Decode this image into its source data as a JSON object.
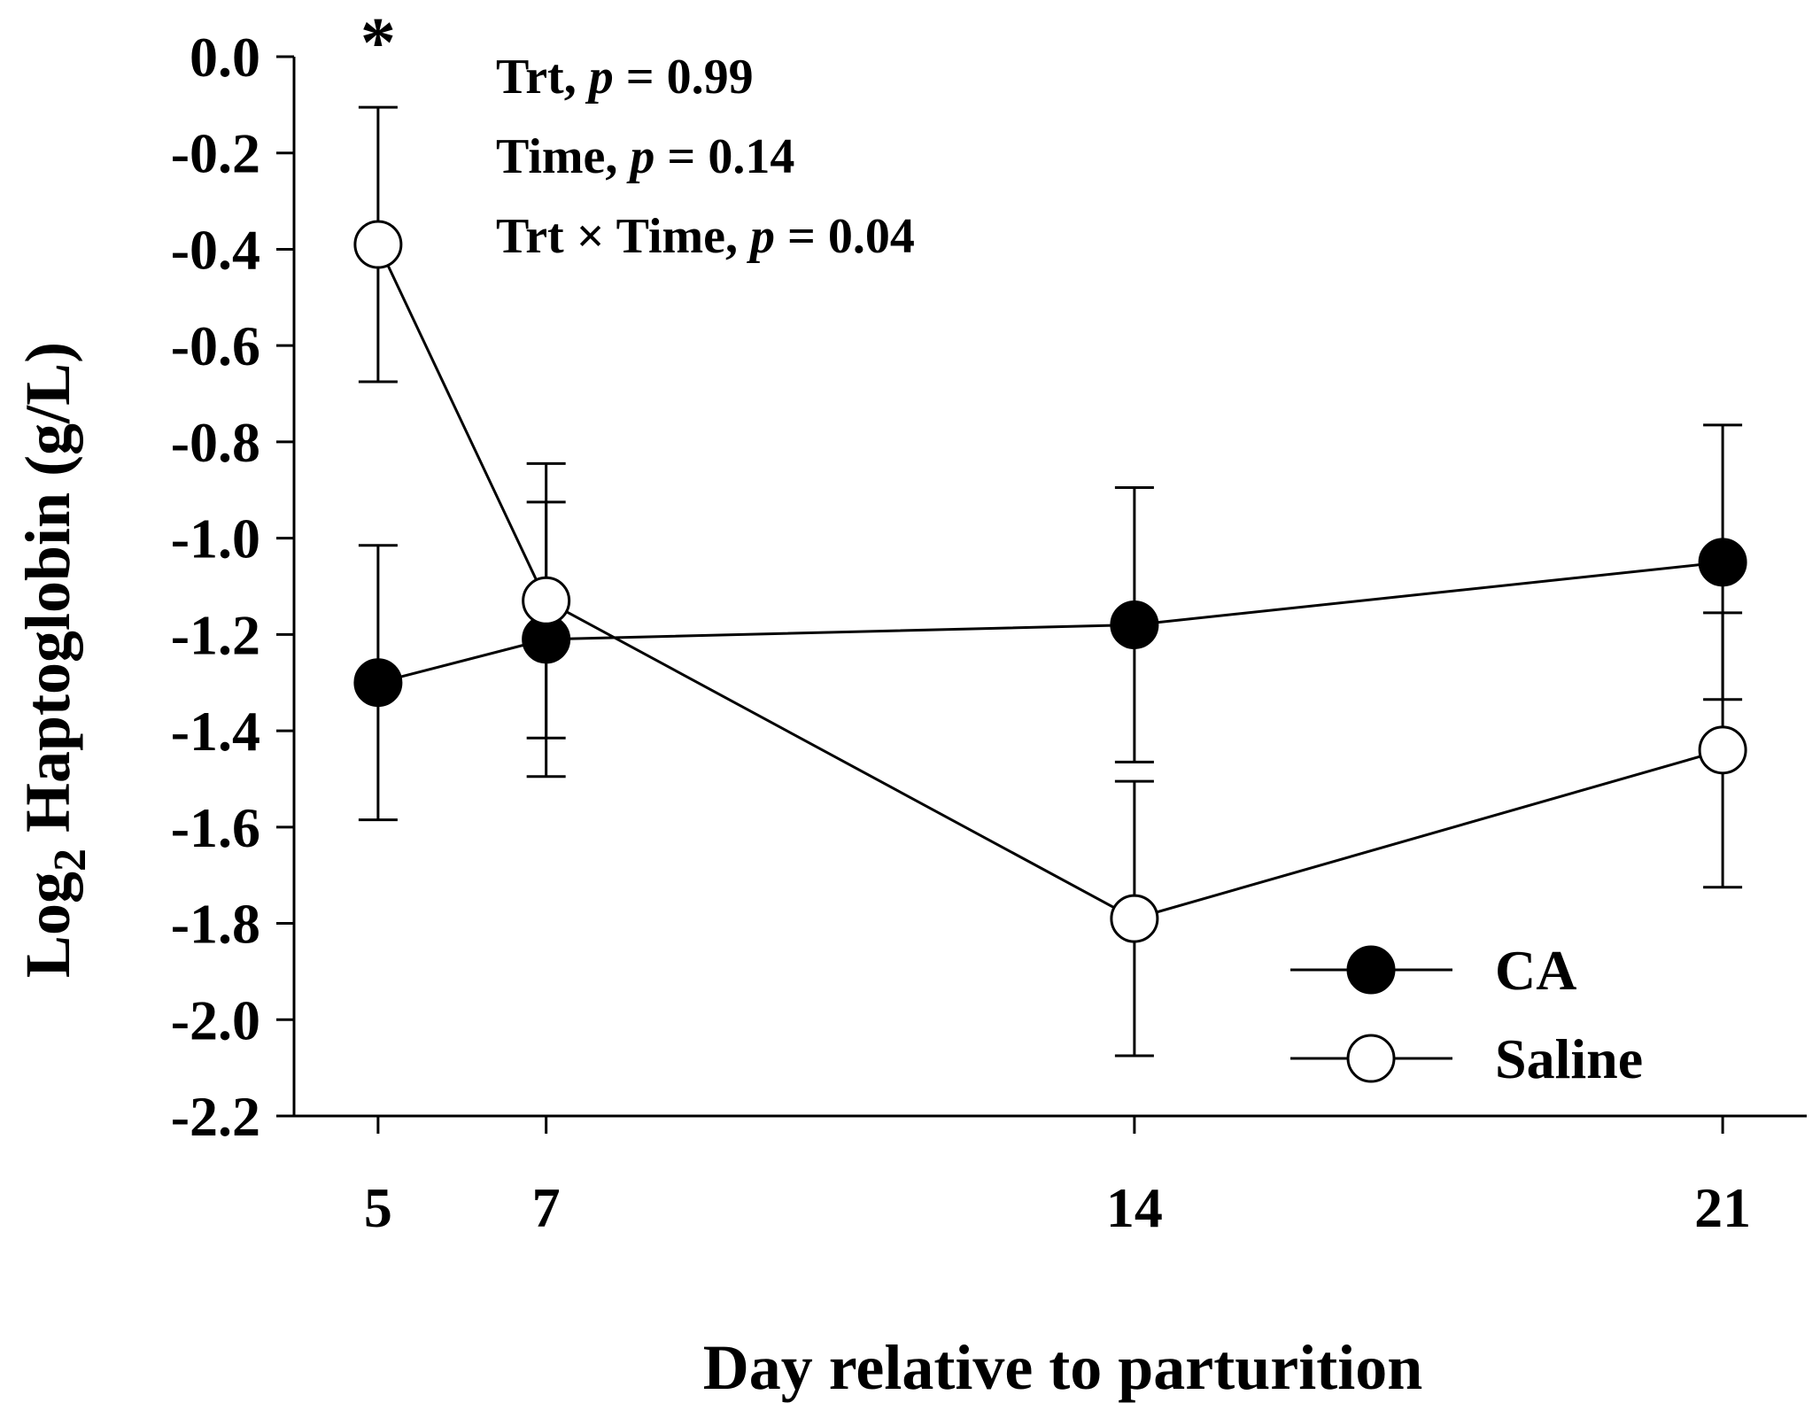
{
  "chart_data": {
    "type": "line",
    "x": [
      5,
      7,
      14,
      21
    ],
    "categories": [
      "5",
      "7",
      "14",
      "21"
    ],
    "xlabel": "Day relative to parturition",
    "ylabel": "Log",
    "ylabel_sub": "2",
    "ylabel_rest": " Haptoglobin (g/L)",
    "ylim": [
      -2.2,
      0.0
    ],
    "yticks": [
      0.0,
      -0.2,
      -0.4,
      -0.6,
      -0.8,
      -1.0,
      -1.2,
      -1.4,
      -1.6,
      -1.8,
      -2.0,
      -2.2
    ],
    "ytick_labels": [
      "0.0",
      "-0.2",
      "-0.4",
      "-0.6",
      "-0.8",
      "-1.0",
      "-1.2",
      "-1.4",
      "-1.6",
      "-1.8",
      "-2.0",
      "-2.2"
    ],
    "series": [
      {
        "name": "CA",
        "marker": "filled",
        "values": [
          -1.3,
          -1.21,
          -1.18,
          -1.05
        ],
        "err": [
          0.285,
          0.285,
          0.285,
          0.285
        ]
      },
      {
        "name": "Saline",
        "marker": "open",
        "values": [
          -0.39,
          -1.13,
          -1.79,
          -1.44
        ],
        "err": [
          0.285,
          0.285,
          0.285,
          0.285
        ]
      }
    ],
    "annotations": {
      "significance_marker": "*",
      "significance_at_x": 5,
      "stats": [
        {
          "label": "Trt, ",
          "p": "p",
          "value": " = 0.99"
        },
        {
          "label": "Time, ",
          "p": "p",
          "value": " = 0.14"
        },
        {
          "label": "Trt × Time, ",
          "p": "p",
          "value": " = 0.04"
        }
      ]
    },
    "legend_position": "bottom-right"
  }
}
